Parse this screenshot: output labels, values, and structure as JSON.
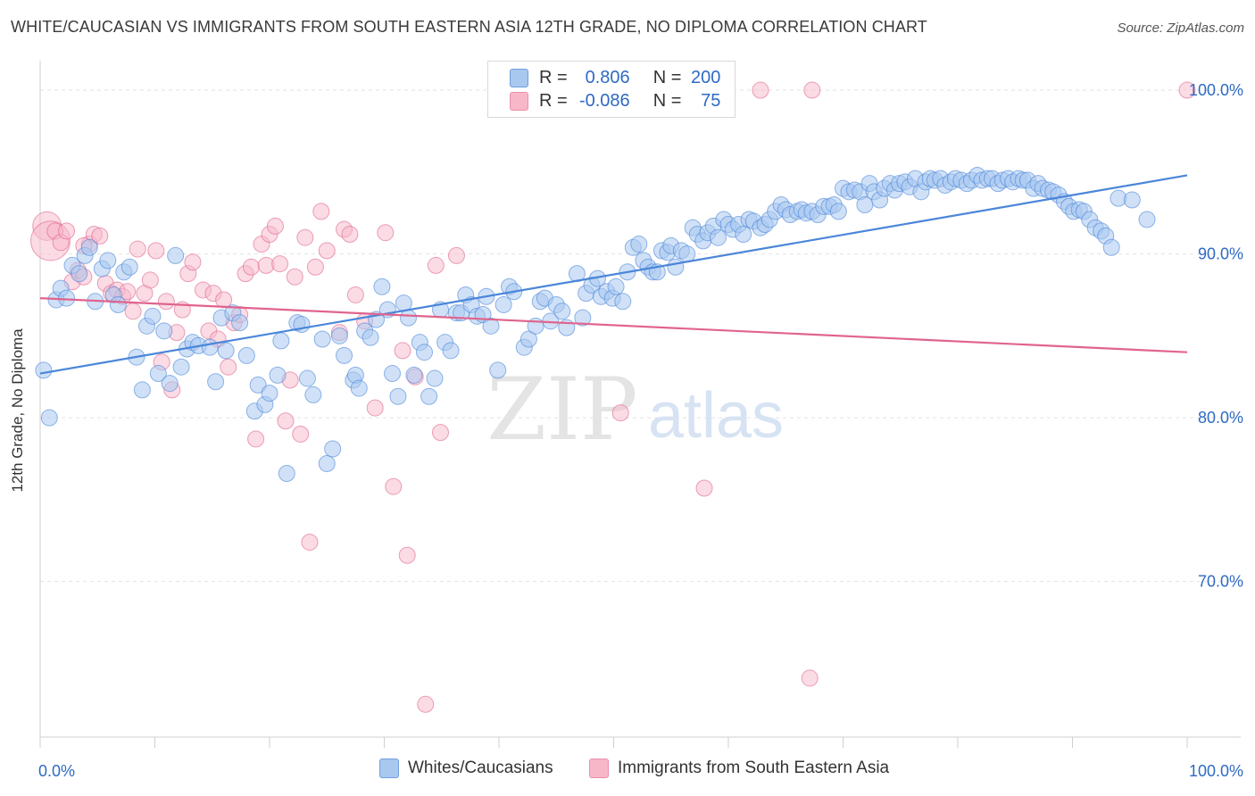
{
  "title": "WHITE/CAUCASIAN VS IMMIGRANTS FROM SOUTH EASTERN ASIA 12TH GRADE, NO DIPLOMA CORRELATION CHART",
  "source": "Source: ZipAtlas.com",
  "watermark": {
    "zip": "ZIP",
    "atlas": "atlas"
  },
  "legend": {
    "rows": [
      {
        "r_label": "R =",
        "r_value": "0.806",
        "n_label": "N =",
        "n_value": "200",
        "color": "#a9c8f0"
      },
      {
        "r_label": "R =",
        "r_value": "-0.086",
        "n_label": "N =",
        "n_value": "75",
        "color": "#f7b7c9"
      }
    ]
  },
  "bottom_legend": [
    {
      "label": "Whites/Caucasians",
      "color": "#a9c8f0"
    },
    {
      "label": "Immigrants from South Eastern Asia",
      "color": "#f7b7c9"
    }
  ],
  "chart_data": {
    "type": "scatter",
    "title": "WHITE/CAUCASIAN VS IMMIGRANTS FROM SOUTH EASTERN ASIA 12TH GRADE, NO DIPLOMA CORRELATION CHART",
    "xlabel": "",
    "ylabel": "12th Grade, No Diploma",
    "xlim": [
      0,
      100
    ],
    "ylim": [
      60.5,
      101.8
    ],
    "x_tick_labels": [
      "0.0%",
      "100.0%"
    ],
    "y_ticks": [
      70,
      80,
      90,
      100
    ],
    "y_tick_labels": [
      "70.0%",
      "80.0%",
      "90.0%",
      "100.0%"
    ],
    "grid": true,
    "legend_position": "top-center",
    "series": [
      {
        "name": "Whites/Caucasians",
        "color": "#4a86d9",
        "fill": "#a9c8f0",
        "trend": {
          "x": [
            0,
            100
          ],
          "y": [
            82.7,
            94.8
          ]
        },
        "points": [
          [
            0.3,
            82.9
          ],
          [
            0.8,
            80.0
          ],
          [
            1.4,
            87.2
          ],
          [
            1.8,
            87.9
          ],
          [
            2.3,
            87.3
          ],
          [
            2.8,
            89.3
          ],
          [
            3.4,
            88.8
          ],
          [
            3.9,
            89.9
          ],
          [
            4.3,
            90.4
          ],
          [
            4.8,
            87.1
          ],
          [
            5.4,
            89.1
          ],
          [
            5.9,
            89.6
          ],
          [
            6.4,
            87.5
          ],
          [
            6.8,
            86.9
          ],
          [
            7.3,
            88.9
          ],
          [
            7.8,
            89.2
          ],
          [
            8.4,
            83.7
          ],
          [
            8.9,
            81.7
          ],
          [
            9.3,
            85.6
          ],
          [
            9.8,
            86.2
          ],
          [
            10.3,
            82.7
          ],
          [
            10.8,
            85.3
          ],
          [
            11.3,
            82.1
          ],
          [
            11.8,
            89.9
          ],
          [
            12.3,
            83.1
          ],
          [
            12.8,
            84.2
          ],
          [
            13.3,
            84.6
          ],
          [
            13.8,
            84.4
          ],
          [
            14.8,
            84.3
          ],
          [
            15.3,
            82.2
          ],
          [
            15.8,
            86.1
          ],
          [
            16.2,
            84.1
          ],
          [
            16.8,
            86.4
          ],
          [
            17.4,
            85.8
          ],
          [
            18.0,
            83.8
          ],
          [
            18.7,
            80.4
          ],
          [
            19.0,
            82.0
          ],
          [
            19.6,
            80.8
          ],
          [
            20.0,
            81.5
          ],
          [
            20.7,
            82.6
          ],
          [
            21.0,
            84.7
          ],
          [
            21.5,
            76.6
          ],
          [
            22.4,
            85.8
          ],
          [
            22.8,
            85.7
          ],
          [
            23.3,
            82.4
          ],
          [
            23.8,
            81.4
          ],
          [
            24.6,
            84.8
          ],
          [
            25.0,
            77.2
          ],
          [
            25.5,
            78.1
          ],
          [
            26.1,
            85.0
          ],
          [
            26.5,
            83.8
          ],
          [
            27.3,
            82.3
          ],
          [
            27.5,
            82.6
          ],
          [
            27.8,
            81.8
          ],
          [
            28.3,
            85.3
          ],
          [
            28.8,
            84.9
          ],
          [
            29.3,
            86.0
          ],
          [
            29.8,
            88.0
          ],
          [
            30.3,
            86.6
          ],
          [
            30.7,
            82.7
          ],
          [
            31.2,
            81.3
          ],
          [
            31.7,
            87.0
          ],
          [
            32.1,
            86.1
          ],
          [
            32.6,
            82.6
          ],
          [
            33.1,
            84.6
          ],
          [
            33.5,
            84.0
          ],
          [
            33.9,
            81.3
          ],
          [
            34.4,
            82.4
          ],
          [
            34.9,
            86.6
          ],
          [
            35.3,
            84.6
          ],
          [
            35.8,
            84.1
          ],
          [
            36.3,
            86.4
          ],
          [
            36.7,
            86.4
          ],
          [
            37.1,
            87.5
          ],
          [
            37.6,
            86.9
          ],
          [
            38.1,
            86.2
          ],
          [
            38.6,
            86.3
          ],
          [
            38.9,
            87.4
          ],
          [
            39.3,
            85.6
          ],
          [
            39.9,
            82.9
          ],
          [
            40.4,
            86.9
          ],
          [
            40.9,
            88.0
          ],
          [
            41.3,
            87.7
          ],
          [
            42.2,
            84.3
          ],
          [
            42.6,
            84.8
          ],
          [
            43.2,
            85.6
          ],
          [
            43.6,
            87.1
          ],
          [
            44.0,
            87.3
          ],
          [
            44.5,
            85.9
          ],
          [
            45.0,
            86.9
          ],
          [
            45.5,
            86.5
          ],
          [
            45.9,
            85.5
          ],
          [
            46.8,
            88.8
          ],
          [
            47.3,
            86.1
          ],
          [
            47.6,
            87.6
          ],
          [
            48.1,
            88.1
          ],
          [
            48.6,
            88.5
          ],
          [
            48.9,
            87.4
          ],
          [
            49.4,
            87.7
          ],
          [
            49.9,
            87.3
          ],
          [
            50.2,
            88.0
          ],
          [
            50.8,
            87.1
          ],
          [
            51.2,
            88.9
          ],
          [
            51.7,
            90.4
          ],
          [
            52.2,
            90.6
          ],
          [
            52.6,
            89.6
          ],
          [
            53.0,
            89.2
          ],
          [
            53.4,
            88.9
          ],
          [
            53.8,
            88.9
          ],
          [
            54.2,
            90.2
          ],
          [
            54.7,
            90.1
          ],
          [
            55.0,
            90.5
          ],
          [
            55.4,
            89.2
          ],
          [
            55.9,
            90.2
          ],
          [
            56.4,
            90.0
          ],
          [
            56.9,
            91.6
          ],
          [
            57.3,
            91.2
          ],
          [
            57.8,
            90.8
          ],
          [
            58.2,
            91.3
          ],
          [
            58.7,
            91.7
          ],
          [
            59.1,
            91.0
          ],
          [
            59.6,
            92.1
          ],
          [
            60.0,
            91.8
          ],
          [
            60.4,
            91.5
          ],
          [
            60.9,
            91.8
          ],
          [
            61.3,
            91.2
          ],
          [
            61.8,
            92.1
          ],
          [
            62.2,
            92.0
          ],
          [
            62.8,
            91.6
          ],
          [
            63.2,
            91.8
          ],
          [
            63.6,
            92.1
          ],
          [
            64.1,
            92.6
          ],
          [
            64.6,
            93.0
          ],
          [
            65.0,
            92.7
          ],
          [
            65.4,
            92.4
          ],
          [
            66.0,
            92.6
          ],
          [
            66.4,
            92.7
          ],
          [
            66.8,
            92.5
          ],
          [
            67.3,
            92.6
          ],
          [
            67.8,
            92.4
          ],
          [
            68.3,
            92.9
          ],
          [
            68.8,
            92.9
          ],
          [
            69.2,
            93.0
          ],
          [
            69.6,
            92.6
          ],
          [
            70.0,
            94.0
          ],
          [
            70.5,
            93.8
          ],
          [
            71.0,
            93.9
          ],
          [
            71.5,
            93.8
          ],
          [
            71.9,
            93.0
          ],
          [
            72.3,
            94.3
          ],
          [
            72.7,
            93.8
          ],
          [
            73.2,
            93.3
          ],
          [
            73.6,
            94.0
          ],
          [
            74.1,
            94.3
          ],
          [
            74.5,
            93.9
          ],
          [
            74.9,
            94.3
          ],
          [
            75.4,
            94.4
          ],
          [
            75.8,
            94.1
          ],
          [
            76.3,
            94.6
          ],
          [
            76.8,
            93.8
          ],
          [
            77.2,
            94.4
          ],
          [
            77.6,
            94.6
          ],
          [
            78.0,
            94.5
          ],
          [
            78.5,
            94.6
          ],
          [
            78.9,
            94.2
          ],
          [
            79.4,
            94.4
          ],
          [
            79.8,
            94.6
          ],
          [
            80.3,
            94.5
          ],
          [
            80.8,
            94.3
          ],
          [
            81.2,
            94.5
          ],
          [
            81.7,
            94.8
          ],
          [
            82.1,
            94.5
          ],
          [
            82.6,
            94.6
          ],
          [
            83.0,
            94.6
          ],
          [
            83.5,
            94.3
          ],
          [
            83.9,
            94.5
          ],
          [
            84.4,
            94.6
          ],
          [
            84.8,
            94.4
          ],
          [
            85.3,
            94.6
          ],
          [
            85.7,
            94.5
          ],
          [
            86.1,
            94.5
          ],
          [
            86.6,
            94.0
          ],
          [
            87.0,
            94.3
          ],
          [
            87.4,
            94.0
          ],
          [
            87.9,
            93.9
          ],
          [
            88.3,
            93.8
          ],
          [
            88.8,
            93.6
          ],
          [
            89.3,
            93.2
          ],
          [
            89.7,
            92.9
          ],
          [
            90.1,
            92.6
          ],
          [
            90.6,
            92.7
          ],
          [
            91.0,
            92.6
          ],
          [
            91.5,
            92.1
          ],
          [
            92.0,
            91.6
          ],
          [
            92.5,
            91.4
          ],
          [
            92.9,
            91.1
          ],
          [
            93.4,
            90.4
          ],
          [
            94.0,
            93.4
          ],
          [
            95.2,
            93.3
          ],
          [
            96.5,
            92.1
          ]
        ]
      },
      {
        "name": "Immigrants from South Eastern Asia",
        "color": "#e0648e",
        "fill": "#f7b7c9",
        "trend": {
          "x": [
            0,
            100
          ],
          "y": [
            87.3,
            84.0
          ]
        },
        "points": [
          [
            0.6,
            91.7
          ],
          [
            0.9,
            90.8
          ],
          [
            1.3,
            91.4
          ],
          [
            1.8,
            90.7
          ],
          [
            2.3,
            91.4
          ],
          [
            2.8,
            88.3
          ],
          [
            3.3,
            89.0
          ],
          [
            3.8,
            88.6
          ],
          [
            4.3,
            90.6
          ],
          [
            4.7,
            91.2
          ],
          [
            5.2,
            91.1
          ],
          [
            5.7,
            88.2
          ],
          [
            6.2,
            87.6
          ],
          [
            6.7,
            87.8
          ],
          [
            7.2,
            87.4
          ],
          [
            7.6,
            87.7
          ],
          [
            8.1,
            86.5
          ],
          [
            8.5,
            90.3
          ],
          [
            9.1,
            87.6
          ],
          [
            9.6,
            88.4
          ],
          [
            10.1,
            90.2
          ],
          [
            10.6,
            83.4
          ],
          [
            11.0,
            87.1
          ],
          [
            11.5,
            81.7
          ],
          [
            11.9,
            85.2
          ],
          [
            12.4,
            86.6
          ],
          [
            12.9,
            88.8
          ],
          [
            13.3,
            89.5
          ],
          [
            14.2,
            87.8
          ],
          [
            14.7,
            85.3
          ],
          [
            15.1,
            87.6
          ],
          [
            15.5,
            84.8
          ],
          [
            16.0,
            87.2
          ],
          [
            16.4,
            83.1
          ],
          [
            16.9,
            85.8
          ],
          [
            17.4,
            86.3
          ],
          [
            17.9,
            88.8
          ],
          [
            18.4,
            89.2
          ],
          [
            18.8,
            78.7
          ],
          [
            19.3,
            90.6
          ],
          [
            19.7,
            89.3
          ],
          [
            20.0,
            91.2
          ],
          [
            20.5,
            91.7
          ],
          [
            20.9,
            89.4
          ],
          [
            21.4,
            79.8
          ],
          [
            21.8,
            82.3
          ],
          [
            22.2,
            88.6
          ],
          [
            22.7,
            79.0
          ],
          [
            23.1,
            91.0
          ],
          [
            23.5,
            72.4
          ],
          [
            24.0,
            89.2
          ],
          [
            24.5,
            92.6
          ],
          [
            25.0,
            90.2
          ],
          [
            26.1,
            85.2
          ],
          [
            26.5,
            91.5
          ],
          [
            27.0,
            91.2
          ],
          [
            27.5,
            87.5
          ],
          [
            28.3,
            85.9
          ],
          [
            29.2,
            80.6
          ],
          [
            30.1,
            91.3
          ],
          [
            30.8,
            75.8
          ],
          [
            31.6,
            84.1
          ],
          [
            32.0,
            71.6
          ],
          [
            32.7,
            82.5
          ],
          [
            33.6,
            62.5
          ],
          [
            34.5,
            89.3
          ],
          [
            34.9,
            79.1
          ],
          [
            36.3,
            89.9
          ],
          [
            50.6,
            80.3
          ],
          [
            57.9,
            75.7
          ],
          [
            62.8,
            100.0
          ],
          [
            67.1,
            64.1
          ],
          [
            67.3,
            100.0
          ],
          [
            100.0,
            100.0
          ],
          [
            3.8,
            90.5
          ]
        ]
      }
    ]
  }
}
